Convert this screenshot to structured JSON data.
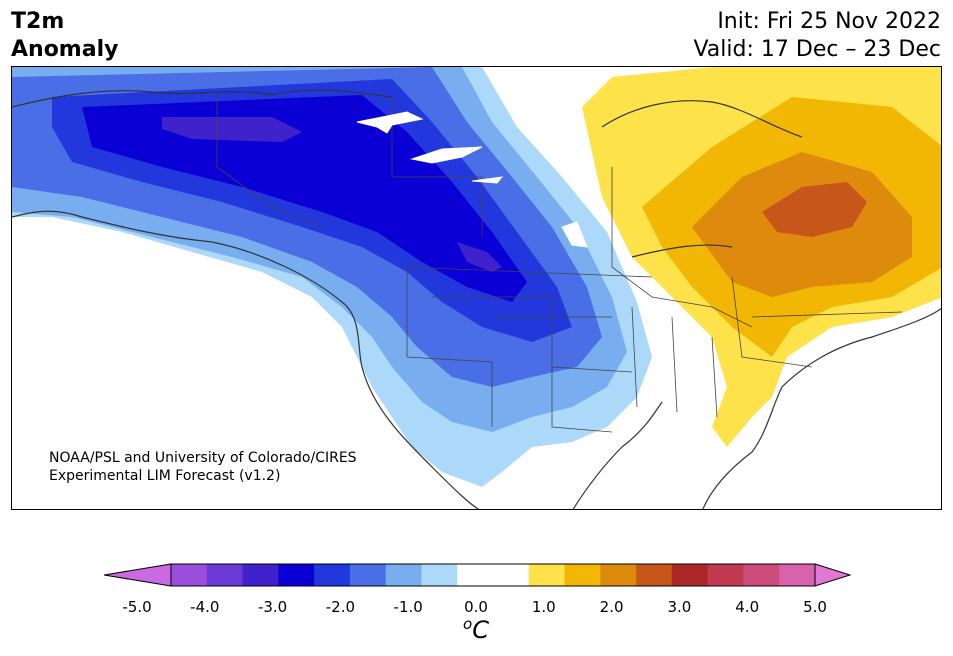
{
  "header": {
    "title_line1": "T2m",
    "title_line2": "Anomaly",
    "init": "Init: Fri 25 Nov 2022",
    "valid": "Valid: 17 Dec – 23 Dec"
  },
  "credit": {
    "line1": "NOAA/PSL and University of Colorado/CIRES",
    "line2": "Experimental LIM Forecast (v1.2)"
  },
  "colorbar": {
    "ticks": [
      "-5.0",
      "-4.0",
      "-3.0",
      "-2.0",
      "-1.0",
      "0.0",
      "1.0",
      "2.0",
      "3.0",
      "4.0",
      "5.0"
    ],
    "unit_symbol": "o",
    "unit_letter": "C",
    "bin_colors": [
      "#c96ae0",
      "#9a4fdc",
      "#6a3ad6",
      "#3f22cc",
      "#0a00d6",
      "#2338dc",
      "#4a6ee6",
      "#78aef0",
      "#acd8fa",
      "#ffffff",
      "#ffffff",
      "#fde24a",
      "#f2b705",
      "#de8a0c",
      "#c6561a",
      "#ad2828",
      "#c23a52",
      "#cc4c7a",
      "#d862ac",
      "#e476d6"
    ]
  }
}
